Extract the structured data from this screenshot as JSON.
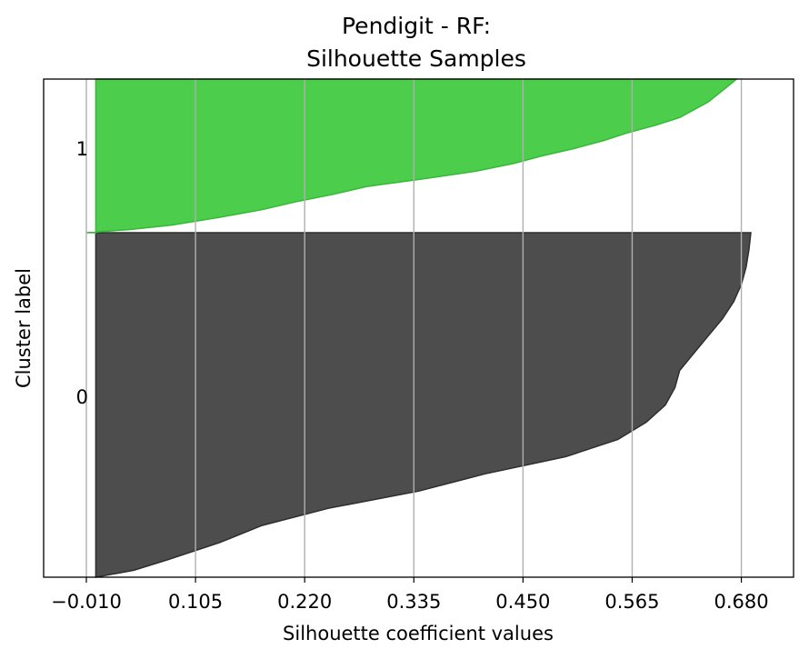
{
  "chart_data": {
    "type": "area",
    "title_lines": [
      "Pendigit - RF:",
      "Silhouette Samples"
    ],
    "xlabel": "Silhouette coefficient values",
    "ylabel": "Cluster label",
    "xlim": [
      -0.055,
      0.735
    ],
    "x_ticks": [
      -0.01,
      0.105,
      0.22,
      0.335,
      0.45,
      0.565,
      0.68
    ],
    "x_tick_labels": [
      "−0.010",
      "0.105",
      "0.220",
      "0.335",
      "0.450",
      "0.565",
      "0.680"
    ],
    "grid": "vertical",
    "series": [
      {
        "cluster_label": "0",
        "color": "#4d4d4d",
        "edge_color": "#2e2e2e",
        "profile": [
          [
            0.0,
            0.0
          ],
          [
            0.02,
            0.04
          ],
          [
            0.05,
            0.075
          ],
          [
            0.1,
            0.13
          ],
          [
            0.15,
            0.175
          ],
          [
            0.2,
            0.245
          ],
          [
            0.25,
            0.34
          ],
          [
            0.3,
            0.41
          ],
          [
            0.35,
            0.495
          ],
          [
            0.4,
            0.55
          ],
          [
            0.45,
            0.58
          ],
          [
            0.5,
            0.6
          ],
          [
            0.55,
            0.61
          ],
          [
            0.6,
            0.615
          ],
          [
            0.65,
            0.63
          ],
          [
            0.7,
            0.645
          ],
          [
            0.75,
            0.66
          ],
          [
            0.8,
            0.672
          ],
          [
            0.85,
            0.68
          ],
          [
            0.9,
            0.685
          ],
          [
            0.95,
            0.688
          ],
          [
            1.0,
            0.69
          ]
        ]
      },
      {
        "cluster_label": "1",
        "color": "#4ccd4c",
        "edge_color": "#38b838",
        "profile": [
          [
            0.0,
            -0.01
          ],
          [
            0.02,
            0.035
          ],
          [
            0.05,
            0.08
          ],
          [
            0.1,
            0.13
          ],
          [
            0.15,
            0.175
          ],
          [
            0.2,
            0.21
          ],
          [
            0.25,
            0.25
          ],
          [
            0.3,
            0.285
          ],
          [
            0.35,
            0.345
          ],
          [
            0.4,
            0.4
          ],
          [
            0.45,
            0.44
          ],
          [
            0.5,
            0.47
          ],
          [
            0.55,
            0.505
          ],
          [
            0.6,
            0.535
          ],
          [
            0.65,
            0.56
          ],
          [
            0.7,
            0.59
          ],
          [
            0.75,
            0.615
          ],
          [
            0.8,
            0.63
          ],
          [
            0.85,
            0.645
          ],
          [
            0.9,
            0.655
          ],
          [
            0.95,
            0.665
          ],
          [
            1.0,
            0.675
          ]
        ]
      }
    ],
    "y_ticks": [
      {
        "label": "0",
        "cluster": "0"
      },
      {
        "label": "1",
        "cluster": "1"
      }
    ]
  }
}
